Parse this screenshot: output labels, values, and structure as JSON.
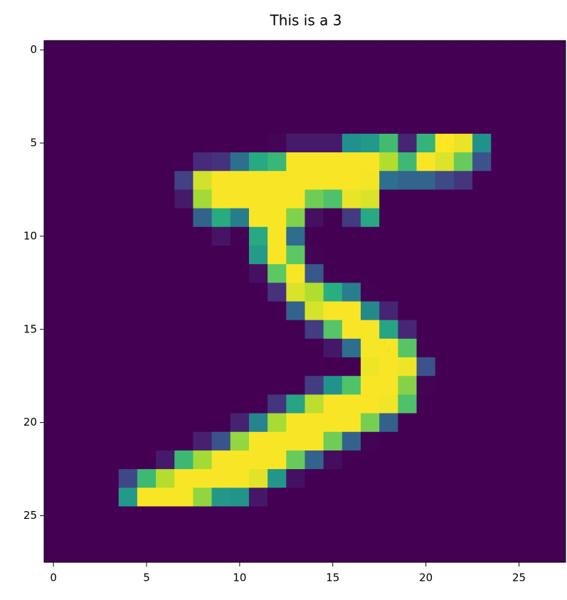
{
  "chart_data": {
    "type": "heatmap",
    "title": "This is a 3",
    "colormap": "viridis",
    "zlim": [
      0,
      255
    ],
    "xlim": [
      -0.5,
      27.5
    ],
    "ylim": [
      27.5,
      -0.5
    ],
    "xticks": [
      0,
      5,
      10,
      15,
      20,
      25
    ],
    "yticks": [
      0,
      5,
      10,
      15,
      20,
      25
    ],
    "z": [
      [
        0,
        0,
        0,
        0,
        0,
        0,
        0,
        0,
        0,
        0,
        0,
        0,
        0,
        0,
        0,
        0,
        0,
        0,
        0,
        0,
        0,
        0,
        0,
        0,
        0,
        0,
        0,
        0
      ],
      [
        0,
        0,
        0,
        0,
        0,
        0,
        0,
        0,
        0,
        0,
        0,
        0,
        0,
        0,
        0,
        0,
        0,
        0,
        0,
        0,
        0,
        0,
        0,
        0,
        0,
        0,
        0,
        0
      ],
      [
        0,
        0,
        0,
        0,
        0,
        0,
        0,
        0,
        0,
        0,
        0,
        0,
        0,
        0,
        0,
        0,
        0,
        0,
        0,
        0,
        0,
        0,
        0,
        0,
        0,
        0,
        0,
        0
      ],
      [
        0,
        0,
        0,
        0,
        0,
        0,
        0,
        0,
        0,
        0,
        0,
        0,
        0,
        0,
        0,
        0,
        0,
        0,
        0,
        0,
        0,
        0,
        0,
        0,
        0,
        0,
        0,
        0
      ],
      [
        0,
        0,
        0,
        0,
        0,
        0,
        0,
        0,
        0,
        0,
        0,
        0,
        0,
        0,
        0,
        0,
        0,
        0,
        0,
        0,
        0,
        0,
        0,
        0,
        0,
        0,
        0,
        0
      ],
      [
        0,
        0,
        0,
        0,
        0,
        0,
        0,
        0,
        0,
        0,
        0,
        0,
        3,
        18,
        18,
        18,
        126,
        136,
        175,
        26,
        166,
        255,
        247,
        127,
        0,
        0,
        0,
        0
      ],
      [
        0,
        0,
        0,
        0,
        0,
        0,
        0,
        0,
        30,
        36,
        94,
        154,
        170,
        253,
        253,
        253,
        253,
        253,
        225,
        172,
        253,
        242,
        195,
        64,
        0,
        0,
        0,
        0
      ],
      [
        0,
        0,
        0,
        0,
        0,
        0,
        0,
        49,
        238,
        253,
        253,
        253,
        253,
        253,
        253,
        253,
        253,
        251,
        93,
        82,
        82,
        56,
        39,
        0,
        0,
        0,
        0,
        0
      ],
      [
        0,
        0,
        0,
        0,
        0,
        0,
        0,
        18,
        219,
        253,
        253,
        253,
        253,
        253,
        198,
        182,
        247,
        241,
        0,
        0,
        0,
        0,
        0,
        0,
        0,
        0,
        0,
        0
      ],
      [
        0,
        0,
        0,
        0,
        0,
        0,
        0,
        0,
        80,
        156,
        107,
        253,
        253,
        205,
        11,
        0,
        43,
        154,
        0,
        0,
        0,
        0,
        0,
        0,
        0,
        0,
        0,
        0
      ],
      [
        0,
        0,
        0,
        0,
        0,
        0,
        0,
        0,
        0,
        14,
        1,
        154,
        253,
        90,
        0,
        0,
        0,
        0,
        0,
        0,
        0,
        0,
        0,
        0,
        0,
        0,
        0,
        0
      ],
      [
        0,
        0,
        0,
        0,
        0,
        0,
        0,
        0,
        0,
        0,
        0,
        139,
        253,
        190,
        2,
        0,
        0,
        0,
        0,
        0,
        0,
        0,
        0,
        0,
        0,
        0,
        0,
        0
      ],
      [
        0,
        0,
        0,
        0,
        0,
        0,
        0,
        0,
        0,
        0,
        0,
        11,
        190,
        253,
        70,
        0,
        0,
        0,
        0,
        0,
        0,
        0,
        0,
        0,
        0,
        0,
        0,
        0
      ],
      [
        0,
        0,
        0,
        0,
        0,
        0,
        0,
        0,
        0,
        0,
        0,
        0,
        35,
        241,
        225,
        160,
        108,
        1,
        0,
        0,
        0,
        0,
        0,
        0,
        0,
        0,
        0,
        0
      ],
      [
        0,
        0,
        0,
        0,
        0,
        0,
        0,
        0,
        0,
        0,
        0,
        0,
        0,
        81,
        240,
        253,
        253,
        119,
        25,
        0,
        0,
        0,
        0,
        0,
        0,
        0,
        0,
        0
      ],
      [
        0,
        0,
        0,
        0,
        0,
        0,
        0,
        0,
        0,
        0,
        0,
        0,
        0,
        0,
        45,
        186,
        253,
        253,
        150,
        27,
        0,
        0,
        0,
        0,
        0,
        0,
        0,
        0
      ],
      [
        0,
        0,
        0,
        0,
        0,
        0,
        0,
        0,
        0,
        0,
        0,
        0,
        0,
        0,
        0,
        16,
        93,
        252,
        253,
        187,
        0,
        0,
        0,
        0,
        0,
        0,
        0,
        0
      ],
      [
        0,
        0,
        0,
        0,
        0,
        0,
        0,
        0,
        0,
        0,
        0,
        0,
        0,
        0,
        0,
        0,
        0,
        249,
        253,
        249,
        64,
        0,
        0,
        0,
        0,
        0,
        0,
        0
      ],
      [
        0,
        0,
        0,
        0,
        0,
        0,
        0,
        0,
        0,
        0,
        0,
        0,
        0,
        0,
        46,
        130,
        183,
        253,
        253,
        207,
        2,
        0,
        0,
        0,
        0,
        0,
        0,
        0
      ],
      [
        0,
        0,
        0,
        0,
        0,
        0,
        0,
        0,
        0,
        0,
        0,
        0,
        39,
        148,
        229,
        253,
        253,
        253,
        250,
        182,
        0,
        0,
        0,
        0,
        0,
        0,
        0,
        0
      ],
      [
        0,
        0,
        0,
        0,
        0,
        0,
        0,
        0,
        0,
        0,
        24,
        114,
        221,
        253,
        253,
        253,
        253,
        201,
        78,
        0,
        0,
        0,
        0,
        0,
        0,
        0,
        0,
        0
      ],
      [
        0,
        0,
        0,
        0,
        0,
        0,
        0,
        0,
        23,
        66,
        213,
        253,
        253,
        253,
        253,
        198,
        81,
        2,
        0,
        0,
        0,
        0,
        0,
        0,
        0,
        0,
        0,
        0
      ],
      [
        0,
        0,
        0,
        0,
        0,
        0,
        18,
        171,
        219,
        253,
        253,
        253,
        253,
        195,
        80,
        9,
        0,
        0,
        0,
        0,
        0,
        0,
        0,
        0,
        0,
        0,
        0,
        0
      ],
      [
        0,
        0,
        0,
        0,
        55,
        172,
        226,
        253,
        253,
        253,
        253,
        244,
        133,
        11,
        0,
        0,
        0,
        0,
        0,
        0,
        0,
        0,
        0,
        0,
        0,
        0,
        0,
        0
      ],
      [
        0,
        0,
        0,
        0,
        136,
        253,
        253,
        253,
        212,
        135,
        132,
        16,
        0,
        0,
        0,
        0,
        0,
        0,
        0,
        0,
        0,
        0,
        0,
        0,
        0,
        0,
        0,
        0
      ],
      [
        0,
        0,
        0,
        0,
        0,
        0,
        0,
        0,
        0,
        0,
        0,
        0,
        0,
        0,
        0,
        0,
        0,
        0,
        0,
        0,
        0,
        0,
        0,
        0,
        0,
        0,
        0,
        0
      ],
      [
        0,
        0,
        0,
        0,
        0,
        0,
        0,
        0,
        0,
        0,
        0,
        0,
        0,
        0,
        0,
        0,
        0,
        0,
        0,
        0,
        0,
        0,
        0,
        0,
        0,
        0,
        0,
        0
      ],
      [
        0,
        0,
        0,
        0,
        0,
        0,
        0,
        0,
        0,
        0,
        0,
        0,
        0,
        0,
        0,
        0,
        0,
        0,
        0,
        0,
        0,
        0,
        0,
        0,
        0,
        0,
        0,
        0
      ]
    ]
  }
}
